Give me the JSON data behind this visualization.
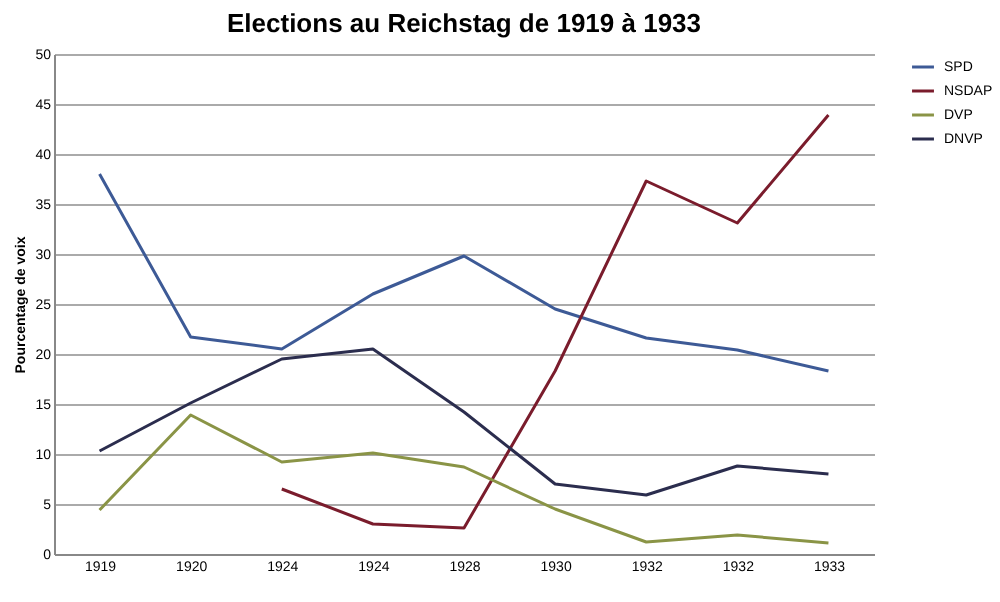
{
  "chart_data": {
    "type": "line",
    "title": "Elections au Reichstag de 1919 à 1933",
    "ylabel": "Pourcentage de voix",
    "categories": [
      "1919",
      "1920",
      "1924",
      "1924",
      "1928",
      "1930",
      "1932",
      "1932",
      "1933"
    ],
    "series": [
      {
        "name": "SPD",
        "color": "#3d5a96",
        "values": [
          38,
          21.7,
          20.5,
          26,
          29.8,
          24.5,
          21.6,
          20.4,
          18.3
        ]
      },
      {
        "name": "NSDAP",
        "color": "#7a1c2c",
        "values": [
          null,
          null,
          6.5,
          3,
          2.6,
          18.3,
          37.3,
          33.1,
          43.9
        ]
      },
      {
        "name": "DVP",
        "color": "#8a9446",
        "values": [
          4.4,
          13.9,
          9.2,
          10.1,
          8.7,
          4.5,
          1.2,
          1.9,
          1.1
        ]
      },
      {
        "name": "DNVP",
        "color": "#2b2d4e",
        "values": [
          10.3,
          15.1,
          19.5,
          20.5,
          14.2,
          7,
          5.9,
          8.8,
          8
        ]
      }
    ],
    "ylim": [
      0,
      50
    ],
    "yticks": [
      0,
      5,
      10,
      15,
      20,
      25,
      30,
      35,
      40,
      45,
      50
    ],
    "grid": "y",
    "legend": "right"
  }
}
